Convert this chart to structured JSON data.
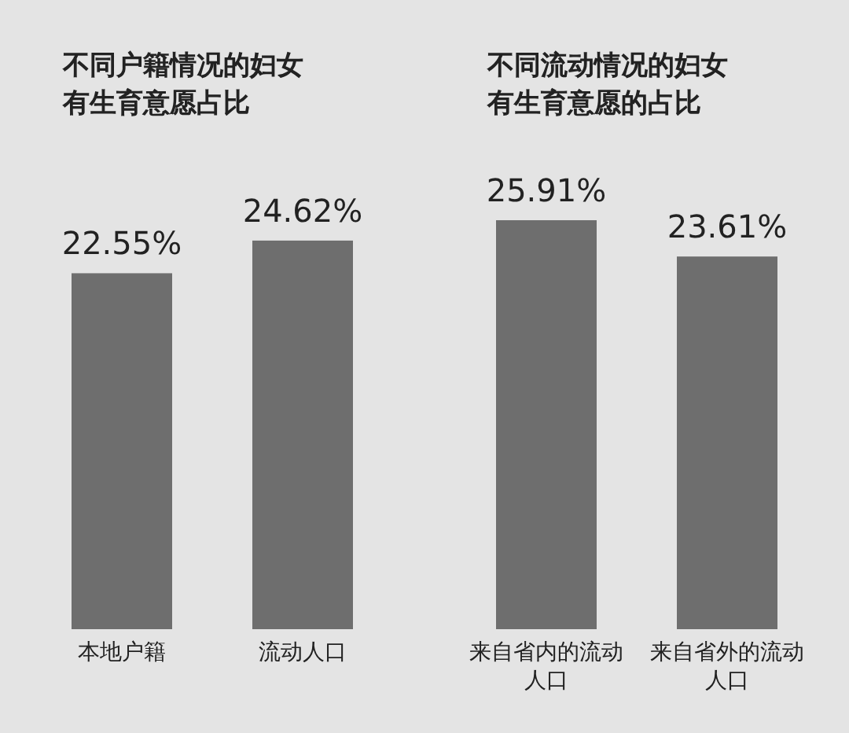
{
  "chart_data": [
    {
      "type": "bar",
      "title": "不同户籍情况的妇女有生育意愿占比",
      "categories": [
        "本地户籍",
        "流动人口"
      ],
      "values": [
        22.55,
        24.62
      ],
      "value_labels": [
        "22.55%",
        "24.62%"
      ],
      "color": "#6e6e6e"
    },
    {
      "type": "bar",
      "title": "不同流动情况的妇女有生育意愿的占比",
      "categories": [
        "来自省内的流动人口",
        "来自省外的流动人口"
      ],
      "values": [
        25.91,
        23.61
      ],
      "value_labels": [
        "25.91%",
        "23.61%"
      ],
      "color": "#6e6e6e"
    }
  ]
}
